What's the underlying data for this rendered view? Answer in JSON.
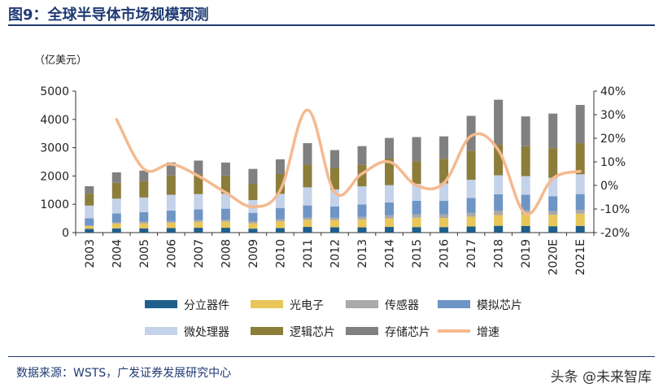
{
  "title": "图9：全球半导体市场规模预测",
  "source": "数据来源：WSTS，广发证券发展研究中心",
  "watermark": "头条 @未来智库",
  "chart_data": {
    "type": "bar",
    "stacked": true,
    "unit_label": "（亿美元）",
    "categories": [
      "2003",
      "2004",
      "2005",
      "2006",
      "2007",
      "2008",
      "2009",
      "2010",
      "2011",
      "2012",
      "2013",
      "2014",
      "2015",
      "2016",
      "2017",
      "2018",
      "2019",
      "2020E",
      "2021E"
    ],
    "ylim": [
      0,
      5000
    ],
    "yticks": [
      0,
      1000,
      2000,
      3000,
      4000,
      5000
    ],
    "y2lim": [
      -20,
      40
    ],
    "y2ticks": [
      "-20%",
      "-10%",
      "0%",
      "10%",
      "20%",
      "30%",
      "40%"
    ],
    "y2tick_values": [
      -20,
      -10,
      0,
      10,
      20,
      30,
      40
    ],
    "series": [
      {
        "name": "分立器件",
        "color": "#1f5f8b",
        "values": [
          130,
          150,
          150,
          160,
          170,
          170,
          140,
          160,
          200,
          190,
          185,
          200,
          195,
          195,
          215,
          240,
          235,
          225,
          235
        ]
      },
      {
        "name": "光电子",
        "color": "#e8c65a",
        "values": [
          100,
          170,
          180,
          190,
          210,
          220,
          190,
          240,
          250,
          250,
          280,
          300,
          330,
          320,
          350,
          380,
          415,
          405,
          435
        ]
      },
      {
        "name": "传感器",
        "color": "#a9a9a9",
        "values": [
          25,
          40,
          50,
          55,
          60,
          65,
          60,
          70,
          80,
          85,
          90,
          110,
          115,
          125,
          140,
          155,
          135,
          125,
          130
        ]
      },
      {
        "name": "模拟芯片",
        "color": "#6f95c5",
        "values": [
          250,
          320,
          340,
          370,
          380,
          390,
          310,
          400,
          430,
          400,
          440,
          455,
          485,
          480,
          520,
          580,
          550,
          530,
          560
        ]
      },
      {
        "name": "微处理器",
        "color": "#c4d3ea",
        "values": [
          450,
          520,
          520,
          560,
          540,
          530,
          450,
          500,
          640,
          600,
          640,
          610,
          600,
          620,
          640,
          670,
          660,
          650,
          700
        ]
      },
      {
        "name": "逻辑芯片",
        "color": "#8c7d3a",
        "values": [
          420,
          560,
          580,
          680,
          680,
          640,
          560,
          700,
          800,
          760,
          760,
          940,
          800,
          870,
          1030,
          1090,
          1060,
          1050,
          1100
        ]
      },
      {
        "name": "存储芯片",
        "color": "#808080",
        "values": [
          265,
          370,
          370,
          465,
          505,
          460,
          540,
          520,
          760,
          630,
          660,
          730,
          850,
          790,
          1230,
          1580,
          1050,
          1220,
          1350
        ]
      }
    ],
    "line": {
      "name": "增速",
      "color": "#f5b98f",
      "values": [
        null,
        28,
        7,
        9,
        4,
        -3,
        -9,
        -2,
        32,
        -3,
        5,
        10,
        0,
        1,
        21,
        15,
        -12,
        3,
        6
      ]
    },
    "legend_position": "bottom",
    "grid": false
  }
}
